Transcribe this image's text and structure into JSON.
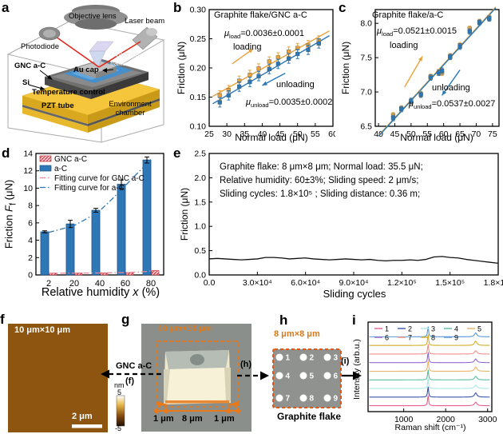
{
  "panels": {
    "a": {
      "letter": "a",
      "labels": {
        "objective_lens": "Objective lens",
        "laser_beam": "Laser beam",
        "photodiode": "Photodiode",
        "gnc": "GNC a-C",
        "si": "Si",
        "au_cap": "Au cap",
        "graphite_flake": "Graphite flake",
        "temperature_control": "Temperature control",
        "pzt_tube": "PZT tube",
        "environment_chamber": "Environment chamber"
      }
    },
    "b": {
      "letter": "b",
      "title": "Graphite flake/GNC a-C",
      "mu": "μ",
      "load_sub": "load",
      "load_val": "=0.0036±0.0001",
      "loading": "loading",
      "unloading": "unloading",
      "unload_sub": "unload",
      "unload_val": "=0.0035±0.0002",
      "xlabel": "Normal load (μN)",
      "ylabel": "Friction (μN)"
    },
    "c": {
      "letter": "c",
      "title": "Graphite flake/a-C",
      "mu": "μ",
      "load_sub": "load",
      "load_val": "=0.0521±0.0015",
      "loading": "loading",
      "unloading": "unloading",
      "unload_sub": "unload",
      "unload_val": "=0.0537±0.0027",
      "xlabel": "Normal load (μN)",
      "ylabel": "Friction (μN)"
    },
    "d": {
      "letter": "d",
      "xlabel_pre": "Relative humidity ",
      "xlabel_var": "x",
      "xlabel_post": " (%)",
      "ylabel_pre": "Friction ",
      "ylabel_var": "F",
      "ylabel_sub": "f",
      "ylabel_post": " (μN)"
    },
    "e": {
      "letter": "e",
      "xlabel": "Sliding cycles",
      "ylabel": "Friction (μN)",
      "line1": "Graphite flake: 8 μm×8 μm; Normal load: 35.5 μN;",
      "line2": "Relative humidity: 60±3%;  Sliding speed:  2 μm/s;",
      "line3": "Sliding cycles: 1.8×10⁵ ; Sliding distance: 0.36 m;"
    },
    "f": {
      "letter": "f",
      "size_label": "10 μm×10 μm",
      "scalebar": "2 μm",
      "cb_unit": "nm",
      "cb_top": "5",
      "cb_bottom": "-5"
    },
    "g": {
      "letter": "g",
      "size_label": "10 μm×10 μm",
      "seg_left": "1 μm",
      "seg_mid": "8 μm",
      "seg_right": "1 μm",
      "to_f_label": "GNC a-C",
      "to_f_ref": "(f)",
      "to_h_ref": "(h)",
      "to_i_ref": "(i)"
    },
    "h": {
      "letter": "h",
      "size_label": "8 μm×8 μm",
      "caption": "Graphite flake",
      "points": [
        "1",
        "2",
        "3",
        "4",
        "5",
        "6",
        "7",
        "8",
        "9"
      ]
    },
    "i": {
      "letter": "i",
      "xlabel": "Raman shift (cm⁻¹)",
      "ylabel": "Intensity (arb.u.)"
    }
  },
  "chart_data": {
    "b": {
      "type": "scatter",
      "title": "Graphite flake/GNC a-C",
      "xlabel": "Normal load (μN)",
      "ylabel": "Friction (μN)",
      "x": [
        28,
        30.5,
        33.5,
        36.5,
        39,
        42,
        44.5,
        47.5,
        50,
        53,
        56
      ],
      "series": [
        {
          "name": "loading",
          "color": "#E8A33D",
          "values": [
            0.153,
            0.162,
            0.178,
            0.188,
            0.199,
            0.211,
            0.218,
            0.228,
            0.234,
            0.239,
            0.247
          ]
        },
        {
          "name": "unloading",
          "color": "#2878B8",
          "values": [
            0.141,
            0.153,
            0.168,
            0.176,
            0.186,
            0.198,
            0.207,
            0.216,
            0.224,
            0.231,
            0.242
          ]
        }
      ],
      "err": 0.008,
      "mu_load": "0.0036±0.0001",
      "mu_unload": "0.0035±0.0002",
      "xlim": [
        25,
        60
      ],
      "xticks": [
        25,
        30,
        35,
        40,
        45,
        50,
        55,
        60
      ],
      "ylim": [
        0.1,
        0.3
      ],
      "yticks": [
        0.1,
        0.15,
        0.2,
        0.25,
        0.3
      ],
      "ytick_labels": [
        "0.10",
        "0.15",
        "0.20",
        "0.25",
        "0.30"
      ],
      "arrows": [
        {
          "x1": 31.5,
          "y1": 0.207,
          "x2": 37.5,
          "y2": 0.233,
          "color": "#E8A33D"
        },
        {
          "x1": 46.5,
          "y1": 0.191,
          "x2": 40,
          "y2": 0.17,
          "color": "#2878B8"
        }
      ]
    },
    "c": {
      "type": "scatter",
      "title": "Graphite flake/a-C",
      "xlabel": "Normal load (μN)",
      "ylabel": "Friction (μN)",
      "x": [
        44.5,
        47,
        50,
        53,
        56,
        58.5,
        59.5,
        62,
        65,
        68,
        71,
        74
      ],
      "series": [
        {
          "name": "loading",
          "color": "#E8A33D",
          "values": [
            6.66,
            6.76,
            6.86,
            6.97,
            7.22,
            7.29,
            7.28,
            7.52,
            7.68,
            7.92,
            8.02,
            8.08
          ]
        },
        {
          "name": "unloading",
          "color": "#2878B8",
          "values": [
            6.62,
            6.75,
            6.87,
            6.96,
            7.21,
            7.28,
            7.31,
            7.51,
            7.66,
            7.88,
            8.01,
            8.07
          ]
        }
      ],
      "err": 0.04,
      "mu_load": "0.0521±0.0015",
      "mu_unload": "0.0537±0.0027",
      "xlim": [
        39,
        77
      ],
      "xticks": [
        40,
        45,
        50,
        55,
        60,
        65,
        70,
        75
      ],
      "ylim": [
        6.5,
        8.2
      ],
      "yticks": [
        6.5,
        7.0,
        7.5,
        8.0
      ],
      "ytick_labels": [
        "6.5",
        "7.0",
        "7.5",
        "8.0"
      ],
      "arrows": [
        {
          "x1": 48,
          "y1": 7.07,
          "x2": 53.5,
          "y2": 7.52,
          "color": "#E8A33D"
        },
        {
          "x1": 65,
          "y1": 7.32,
          "x2": 59.5,
          "y2": 6.95,
          "color": "#2878B8"
        }
      ]
    },
    "d": {
      "type": "bar",
      "xlabel": "Relative humidity x (%)",
      "ylabel": "Friction Ff (μN)",
      "categories": [
        "2",
        "20",
        "40",
        "60",
        "80"
      ],
      "series": [
        {
          "name": "GNC a-C",
          "color": "#F2C4CC",
          "hatch": "#C03038",
          "values": [
            0.2,
            0.21,
            0.23,
            0.27,
            0.5
          ]
        },
        {
          "name": "a-C",
          "color": "#2E78B8",
          "values": [
            4.97,
            5.88,
            7.45,
            10.45,
            13.25
          ],
          "errors": [
            0.12,
            0.42,
            0.22,
            0.5,
            0.35
          ]
        }
      ],
      "legend": [
        "GNC a-C",
        "a-C",
        "Fitting curve for GNC a-C",
        "Fitting curve for a-C"
      ],
      "fit_x": [
        2,
        10,
        20,
        30,
        40,
        50,
        60,
        70,
        80
      ],
      "fit_gnc": [
        0.2,
        0.2,
        0.21,
        0.22,
        0.23,
        0.25,
        0.27,
        0.33,
        0.45
      ],
      "fit_ac": [
        4.9,
        5.25,
        5.7,
        6.5,
        7.4,
        8.8,
        10.3,
        11.8,
        13.3
      ],
      "ylim": [
        0,
        14
      ],
      "yticks": [
        0,
        2,
        4,
        6,
        8,
        10,
        12,
        14
      ],
      "ytick_labels": [
        "0",
        "2",
        "4",
        "6",
        "8",
        "10",
        "12",
        "14"
      ]
    },
    "e": {
      "type": "line",
      "xlabel": "Sliding cycles",
      "ylabel": "Friction (μN)",
      "color": "#111111",
      "x": [
        0,
        5000,
        10000,
        15000,
        20000,
        25000,
        30000,
        35000,
        40000,
        45000,
        50000,
        55000,
        60000,
        65000,
        70000,
        75000,
        80000,
        85000,
        90000,
        95000,
        100000,
        105000,
        110000,
        115000,
        120000,
        125000,
        130000,
        135000,
        140000,
        145000,
        150000,
        155000,
        160000,
        165000,
        170000,
        175000,
        180000
      ],
      "y": [
        0.33,
        0.34,
        0.33,
        0.32,
        0.31,
        0.32,
        0.33,
        0.36,
        0.36,
        0.35,
        0.33,
        0.34,
        0.35,
        0.33,
        0.32,
        0.31,
        0.32,
        0.33,
        0.32,
        0.31,
        0.32,
        0.3,
        0.29,
        0.3,
        0.3,
        0.31,
        0.3,
        0.32,
        0.37,
        0.38,
        0.36,
        0.35,
        0.32,
        0.3,
        0.28,
        0.26,
        0.24
      ],
      "xlim": [
        0,
        180000
      ],
      "xticks": [
        0,
        30000,
        60000,
        90000,
        120000,
        150000,
        180000
      ],
      "xtick_labels": [
        "0.0",
        "3.0×10⁴",
        "6.0×10⁴",
        "9.0×10⁴",
        "1.2×10⁵",
        "1.5×10⁵",
        "1.8×10⁵"
      ],
      "ylim": [
        0,
        2.5
      ],
      "yticks": [
        0.0,
        0.5,
        1.0,
        1.5,
        2.0,
        2.5
      ],
      "ytick_labels": [
        "0.0",
        "0.5",
        "1.0",
        "1.5",
        "2.0",
        "2.5"
      ]
    },
    "i": {
      "type": "spectra",
      "xlabel": "Raman shift (cm⁻¹)",
      "ylabel": "Intensity (arb.u.)",
      "xlim": [
        150,
        3100
      ],
      "xticks": [
        1000,
        2000,
        3000
      ],
      "xtick_labels": [
        "1000",
        "2000",
        "3000"
      ],
      "ylim": [
        0,
        10.6
      ],
      "peaks": {
        "g_center": 1581,
        "g_width": 14,
        "d2_center": 2716,
        "d2_width": 34
      },
      "series": [
        {
          "label": "1",
          "color": "#E8608A",
          "g_h": 1.25,
          "d2_h": 0.42
        },
        {
          "label": "2",
          "color": "#3A55A8",
          "g_h": 1.28,
          "d2_h": 0.5
        },
        {
          "label": "3",
          "color": "#A8E8E4",
          "g_h": 1.22,
          "d2_h": 0.4
        },
        {
          "label": "4",
          "color": "#58BFA0",
          "g_h": 1.24,
          "d2_h": 0.42
        },
        {
          "label": "5",
          "color": "#E8B468",
          "g_h": 1.3,
          "d2_h": 0.5
        },
        {
          "label": "6",
          "color": "#9668D0",
          "g_h": 1.26,
          "d2_h": 0.44
        },
        {
          "label": "7",
          "color": "#F49088",
          "g_h": 1.22,
          "d2_h": 0.4
        },
        {
          "label": "8",
          "color": "#D4AC28",
          "g_h": 1.34,
          "d2_h": 0.5
        },
        {
          "label": "9",
          "color": "#5898D8",
          "g_h": 1.26,
          "d2_h": 0.46
        }
      ]
    }
  }
}
